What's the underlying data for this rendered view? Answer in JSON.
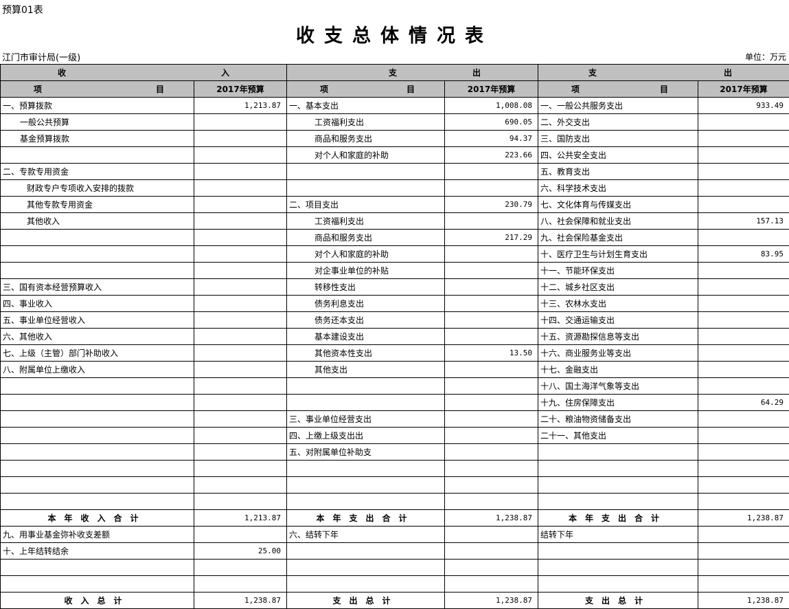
{
  "header": {
    "form_code": "预算01表",
    "title": "收支总体情况表",
    "org": "江门市审计局(一级)",
    "unit": "单位：万元"
  },
  "columns": {
    "group1_left": "收",
    "group1_right": "入",
    "group2_left": "支",
    "group2_right": "出",
    "group3_left": "支",
    "group3_right": "出",
    "item_left": "项",
    "item_right": "目",
    "budget": "2017年预算"
  },
  "rows": [
    {
      "type": "data",
      "cells": [
        [
          "一、预算拨款",
          0
        ],
        [
          "1,213.87"
        ],
        [
          "一、基本支出",
          0
        ],
        [
          "1,008.08"
        ],
        [
          "一、一般公共服务支出",
          0
        ],
        [
          "933.49"
        ]
      ]
    },
    {
      "type": "data",
      "cells": [
        [
          "一般公共预算",
          1
        ],
        [
          ""
        ],
        [
          "工资福利支出",
          3
        ],
        [
          "690.05"
        ],
        [
          "二、外交支出",
          0
        ],
        [
          ""
        ]
      ]
    },
    {
      "type": "data",
      "cells": [
        [
          "基金预算拨款",
          1
        ],
        [
          ""
        ],
        [
          "商品和服务支出",
          3
        ],
        [
          "94.37"
        ],
        [
          "三、国防支出",
          0
        ],
        [
          ""
        ]
      ]
    },
    {
      "type": "data",
      "cells": [
        [
          "",
          0
        ],
        [
          ""
        ],
        [
          "对个人和家庭的补助",
          3
        ],
        [
          "223.66"
        ],
        [
          "四、公共安全支出",
          0
        ],
        [
          ""
        ]
      ]
    },
    {
      "type": "data",
      "cells": [
        [
          "二、专款专用资金",
          0
        ],
        [
          ""
        ],
        [
          "",
          0
        ],
        [
          ""
        ],
        [
          "五、教育支出",
          0
        ],
        [
          ""
        ]
      ]
    },
    {
      "type": "data",
      "cells": [
        [
          "财政专户专项收入安排的拨款",
          2
        ],
        [
          ""
        ],
        [
          "",
          0
        ],
        [
          ""
        ],
        [
          "六、科学技术支出",
          0
        ],
        [
          ""
        ]
      ]
    },
    {
      "type": "data",
      "cells": [
        [
          "其他专款专用资金",
          2
        ],
        [
          ""
        ],
        [
          "二、项目支出",
          0
        ],
        [
          "230.79"
        ],
        [
          "七、文化体育与传媒支出",
          0
        ],
        [
          ""
        ]
      ]
    },
    {
      "type": "data",
      "cells": [
        [
          "其他收入",
          2
        ],
        [
          ""
        ],
        [
          "工资福利支出",
          3
        ],
        [
          ""
        ],
        [
          "八、社会保障和就业支出",
          0
        ],
        [
          "157.13"
        ]
      ]
    },
    {
      "type": "data",
      "cells": [
        [
          "",
          0
        ],
        [
          ""
        ],
        [
          "商品和服务支出",
          3
        ],
        [
          "217.29"
        ],
        [
          "九、社会保险基金支出",
          0
        ],
        [
          ""
        ]
      ]
    },
    {
      "type": "data",
      "cells": [
        [
          "",
          0
        ],
        [
          ""
        ],
        [
          "对个人和家庭的补助",
          3
        ],
        [
          ""
        ],
        [
          "十、医疗卫生与计划生育支出",
          0
        ],
        [
          "83.95"
        ]
      ]
    },
    {
      "type": "data",
      "cells": [
        [
          "",
          0
        ],
        [
          ""
        ],
        [
          "对企事业单位的补贴",
          3
        ],
        [
          ""
        ],
        [
          "十一、节能环保支出",
          0
        ],
        [
          ""
        ]
      ]
    },
    {
      "type": "data",
      "cells": [
        [
          "三、国有资本经营预算收入",
          0
        ],
        [
          ""
        ],
        [
          "转移性支出",
          3
        ],
        [
          ""
        ],
        [
          "十二、城乡社区支出",
          0
        ],
        [
          ""
        ]
      ]
    },
    {
      "type": "data",
      "cells": [
        [
          "四、事业收入",
          0
        ],
        [
          ""
        ],
        [
          "债务利息支出",
          3
        ],
        [
          ""
        ],
        [
          "十三、农林水支出",
          0
        ],
        [
          ""
        ]
      ]
    },
    {
      "type": "data",
      "cells": [
        [
          "五、事业单位经营收入",
          0
        ],
        [
          ""
        ],
        [
          "债务还本支出",
          3
        ],
        [
          ""
        ],
        [
          "十四、交通运输支出",
          0
        ],
        [
          ""
        ]
      ]
    },
    {
      "type": "data",
      "cells": [
        [
          "六、其他收入",
          0
        ],
        [
          ""
        ],
        [
          "基本建设支出",
          3
        ],
        [
          ""
        ],
        [
          "十五、资源勘探信息等支出",
          0
        ],
        [
          ""
        ]
      ]
    },
    {
      "type": "data",
      "cells": [
        [
          "七、上级（主管）部门补助收入",
          0
        ],
        [
          ""
        ],
        [
          "其他资本性支出",
          3
        ],
        [
          "13.50"
        ],
        [
          "十六、商业服务业等支出",
          0
        ],
        [
          ""
        ]
      ]
    },
    {
      "type": "data",
      "cells": [
        [
          "八、附属单位上缴收入",
          0
        ],
        [
          ""
        ],
        [
          "其他支出",
          3
        ],
        [
          ""
        ],
        [
          "十七、金融支出",
          0
        ],
        [
          ""
        ]
      ]
    },
    {
      "type": "data",
      "cells": [
        [
          "",
          0
        ],
        [
          ""
        ],
        [
          "",
          0
        ],
        [
          ""
        ],
        [
          "十八、国土海洋气象等支出",
          0
        ],
        [
          ""
        ]
      ]
    },
    {
      "type": "data",
      "cells": [
        [
          "",
          0
        ],
        [
          ""
        ],
        [
          "",
          0
        ],
        [
          ""
        ],
        [
          "十九、住房保障支出",
          0
        ],
        [
          "64.29"
        ]
      ]
    },
    {
      "type": "data",
      "cells": [
        [
          "",
          0
        ],
        [
          ""
        ],
        [
          "三、事业单位经营支出",
          0
        ],
        [
          ""
        ],
        [
          "二十、粮油物资储备支出",
          0
        ],
        [
          ""
        ]
      ]
    },
    {
      "type": "data",
      "cells": [
        [
          "",
          0
        ],
        [
          ""
        ],
        [
          "四、上缴上级支出出",
          0
        ],
        [
          ""
        ],
        [
          "二十一、其他支出",
          0
        ],
        [
          ""
        ]
      ]
    },
    {
      "type": "data",
      "cells": [
        [
          "",
          0
        ],
        [
          ""
        ],
        [
          "五、对附属单位补助支",
          0
        ],
        [
          ""
        ],
        [
          "",
          0
        ],
        [
          ""
        ]
      ]
    },
    {
      "type": "data",
      "cells": [
        [
          "",
          0
        ],
        [
          ""
        ],
        [
          "",
          0
        ],
        [
          ""
        ],
        [
          "",
          0
        ],
        [
          ""
        ]
      ]
    },
    {
      "type": "data",
      "cells": [
        [
          "",
          0
        ],
        [
          ""
        ],
        [
          "",
          0
        ],
        [
          ""
        ],
        [
          "",
          0
        ],
        [
          ""
        ]
      ]
    },
    {
      "type": "data",
      "cells": [
        [
          "",
          0
        ],
        [
          ""
        ],
        [
          "",
          0
        ],
        [
          ""
        ],
        [
          "",
          0
        ],
        [
          ""
        ]
      ]
    },
    {
      "type": "tot",
      "cells": [
        [
          "本年收入合计",
          0
        ],
        [
          "1,213.87"
        ],
        [
          "本年支出合计",
          0
        ],
        [
          "1,238.87"
        ],
        [
          "本年支出合计",
          0
        ],
        [
          "1,238.87"
        ]
      ]
    },
    {
      "type": "data",
      "cells": [
        [
          "九、用事业基金弥补收支差额",
          0
        ],
        [
          ""
        ],
        [
          "六、结转下年",
          0
        ],
        [
          ""
        ],
        [
          "结转下年",
          0
        ],
        [
          ""
        ]
      ]
    },
    {
      "type": "data",
      "cells": [
        [
          "十、上年结转结余",
          0
        ],
        [
          "25.00"
        ],
        [
          "",
          0
        ],
        [
          ""
        ],
        [
          "",
          0
        ],
        [
          ""
        ]
      ]
    },
    {
      "type": "data",
      "cells": [
        [
          "",
          0
        ],
        [
          ""
        ],
        [
          "",
          0
        ],
        [
          ""
        ],
        [
          "",
          0
        ],
        [
          ""
        ]
      ]
    },
    {
      "type": "data",
      "cells": [
        [
          "",
          0
        ],
        [
          ""
        ],
        [
          "",
          0
        ],
        [
          ""
        ],
        [
          "",
          0
        ],
        [
          ""
        ]
      ]
    },
    {
      "type": "tot",
      "cells": [
        [
          "收入总计",
          0
        ],
        [
          "1,238.87"
        ],
        [
          "支出总计",
          0
        ],
        [
          "1,238.87"
        ],
        [
          "支出总计",
          0
        ],
        [
          "1,238.87"
        ]
      ]
    }
  ]
}
